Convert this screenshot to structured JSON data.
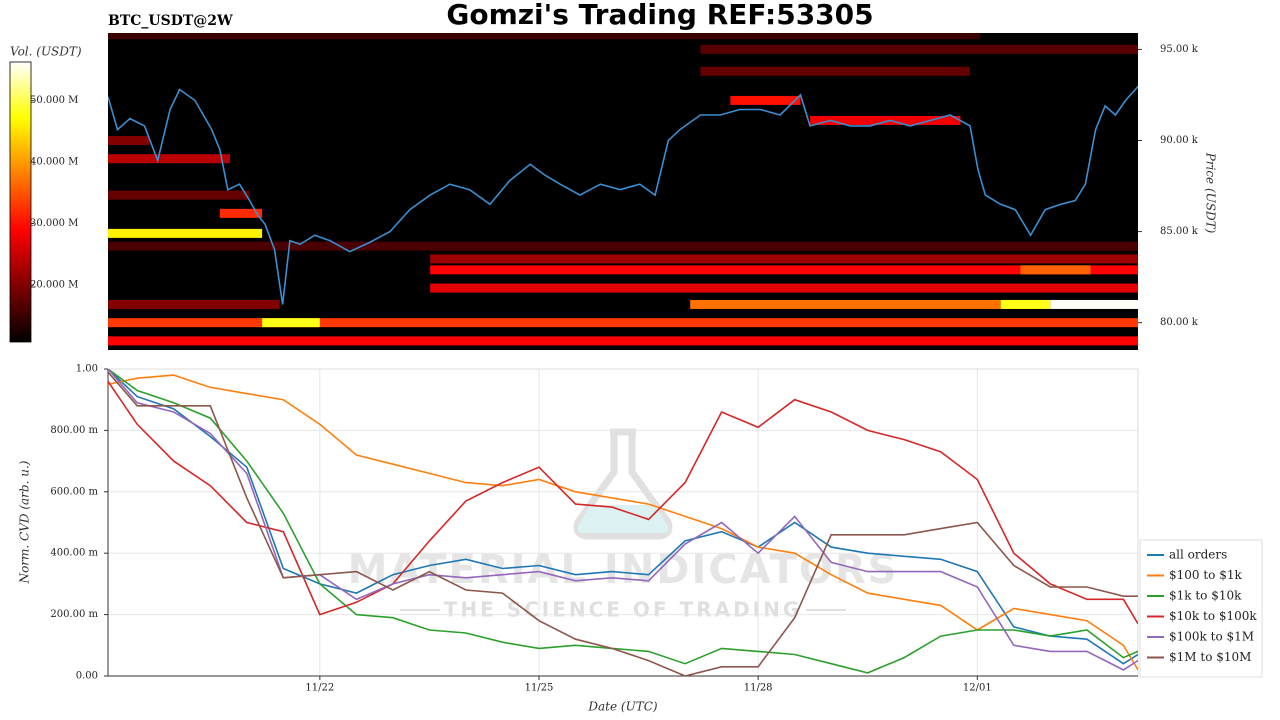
{
  "chart_data": [
    {
      "type": "heatmap",
      "title": "Gomzi's Trading REF:53305",
      "subtitle": "BTC_USDT@2W",
      "colorbar_label": "Vol. (USDT)",
      "clim": [
        10.7,
        56.3
      ],
      "cticks": [
        {
          "value": 20,
          "label": "20.000 M"
        },
        {
          "value": 30,
          "label": "30.000 M"
        },
        {
          "value": 40,
          "label": "40.000 M"
        },
        {
          "value": 50,
          "label": "50.000 M"
        }
      ],
      "ylabel": "Price (USDT)",
      "ylim": [
        78.5,
        95.9
      ],
      "yticks": [
        {
          "value": 80,
          "label": "80.00 k"
        },
        {
          "value": 85,
          "label": "85.00 k"
        },
        {
          "value": 90,
          "label": "90.00 k"
        },
        {
          "value": 95,
          "label": "95.00 k"
        }
      ],
      "xlim": [
        19.1,
        33.2
      ],
      "bands": [
        {
          "price": 95.8,
          "x": [
            19.1,
            31.04
          ],
          "volume": 15
        },
        {
          "price": 95.0,
          "x": [
            27.21,
            33.2
          ],
          "volume": 17
        },
        {
          "price": 93.8,
          "x": [
            27.21,
            30.9
          ],
          "volume": 18
        },
        {
          "price": 92.2,
          "x": [
            27.62,
            28.58
          ],
          "volume": 30
        },
        {
          "price": 91.1,
          "x": [
            28.71,
            30.77
          ],
          "volume": 28
        },
        {
          "price": 90.0,
          "x": [
            19.1,
            19.67
          ],
          "volume": 20
        },
        {
          "price": 89.0,
          "x": [
            19.1,
            20.77
          ],
          "volume": 24
        },
        {
          "price": 87.0,
          "x": [
            19.1,
            21.04
          ],
          "volume": 18
        },
        {
          "price": 86.0,
          "x": [
            20.63,
            21.21
          ],
          "volume": 32
        },
        {
          "price": 84.9,
          "x": [
            19.1,
            21.21
          ],
          "volume": 46
        },
        {
          "price": 84.2,
          "x": [
            19.1,
            33.2
          ],
          "volume": 16
        },
        {
          "price": 83.5,
          "x": [
            23.51,
            33.2
          ],
          "volume": 22
        },
        {
          "price": 82.9,
          "x": [
            23.51,
            33.2
          ],
          "volume": 29
        },
        {
          "price": 82.9,
          "x": [
            31.59,
            32.55
          ],
          "volume": 36
        },
        {
          "price": 81.9,
          "x": [
            23.51,
            33.2
          ],
          "volume": 27
        },
        {
          "price": 81.0,
          "x": [
            19.1,
            21.45
          ],
          "volume": 20
        },
        {
          "price": 81.0,
          "x": [
            27.07,
            31.32
          ],
          "volume": 37
        },
        {
          "price": 81.0,
          "x": [
            31.32,
            32.0
          ],
          "volume": 48
        },
        {
          "price": 81.0,
          "x": [
            32.0,
            33.2
          ],
          "volume": 56
        },
        {
          "price": 80.0,
          "x": [
            19.1,
            33.2
          ],
          "volume": 33
        },
        {
          "price": 80.0,
          "x": [
            21.21,
            22.0
          ],
          "volume": 48
        },
        {
          "price": 79.0,
          "x": [
            19.1,
            33.2
          ],
          "volume": 29
        }
      ],
      "x": [
        19.1,
        19.23,
        19.4,
        19.6,
        19.78,
        19.95,
        20.08,
        20.29,
        20.52,
        20.63,
        20.74,
        20.9,
        21.04,
        21.15,
        21.25,
        21.38,
        21.49,
        21.59,
        21.73,
        21.93,
        22.14,
        22.41,
        22.68,
        22.96,
        23.23,
        23.51,
        23.78,
        24.05,
        24.33,
        24.6,
        24.88,
        25.08,
        25.29,
        25.56,
        25.84,
        26.11,
        26.38,
        26.59,
        26.77,
        26.93,
        27.21,
        27.48,
        27.75,
        28.03,
        28.3,
        28.58,
        28.71,
        28.99,
        29.26,
        29.53,
        29.81,
        30.08,
        30.36,
        30.63,
        30.9,
        31.01,
        31.11,
        31.32,
        31.52,
        31.73,
        31.93,
        32.14,
        32.34,
        32.48,
        32.62,
        32.75,
        32.89,
        33.03,
        33.21
      ],
      "series": [
        {
          "color": "#3b8fd1",
          "values": [
            92.4,
            90.6,
            91.2,
            90.8,
            88.9,
            91.7,
            92.8,
            92.2,
            90.6,
            89.5,
            87.3,
            87.6,
            86.7,
            85.9,
            85.4,
            84.0,
            81.0,
            84.5,
            84.3,
            84.8,
            84.5,
            83.9,
            84.4,
            85.0,
            86.2,
            87.0,
            87.6,
            87.3,
            86.5,
            87.8,
            88.7,
            88.1,
            87.6,
            87.0,
            87.6,
            87.3,
            87.6,
            87.0,
            90.0,
            90.6,
            91.4,
            91.4,
            91.7,
            91.7,
            91.4,
            92.5,
            90.8,
            91.1,
            90.8,
            90.8,
            91.1,
            90.8,
            91.1,
            91.4,
            90.8,
            88.4,
            87.0,
            86.5,
            86.2,
            84.8,
            86.2,
            86.5,
            86.7,
            87.6,
            90.6,
            91.9,
            91.4,
            92.2,
            93.0
          ]
        }
      ]
    },
    {
      "type": "line",
      "xlabel": "Date (UTC)",
      "ylabel": "Norm. CVD (arb. u.)",
      "xlim": [
        19.1,
        33.2
      ],
      "ylim": [
        0,
        1
      ],
      "xticks": [
        {
          "value": 22,
          "label": "11/22"
        },
        {
          "value": 25,
          "label": "11/25"
        },
        {
          "value": 28,
          "label": "11/28"
        },
        {
          "value": 31,
          "label": "12/01"
        }
      ],
      "yticks": [
        {
          "value": 0,
          "label": "0.00"
        },
        {
          "value": 0.2,
          "label": "200.00 m"
        },
        {
          "value": 0.4,
          "label": "400.00 m"
        },
        {
          "value": 0.6,
          "label": "600.00 m"
        },
        {
          "value": 0.8,
          "label": "800.00 m"
        },
        {
          "value": 1,
          "label": "1.00"
        }
      ],
      "grid": true,
      "legend": "right",
      "watermark": [
        "MATERIAL INDICATORS",
        "THE SCIENCE OF TRADING"
      ],
      "x": [
        19.1,
        19.5,
        20.0,
        20.5,
        21.0,
        21.5,
        22.0,
        22.5,
        23.0,
        23.5,
        24.0,
        24.5,
        25.0,
        25.5,
        26.0,
        26.5,
        27.0,
        27.5,
        28.0,
        28.5,
        29.0,
        29.5,
        30.0,
        30.5,
        31.0,
        31.5,
        32.0,
        32.5,
        33.0,
        33.2
      ],
      "series": [
        {
          "name": "all orders",
          "color": "#1f77b4",
          "values": [
            1.0,
            0.91,
            0.87,
            0.78,
            0.68,
            0.35,
            0.3,
            0.27,
            0.33,
            0.36,
            0.38,
            0.35,
            0.36,
            0.33,
            0.34,
            0.33,
            0.44,
            0.47,
            0.42,
            0.5,
            0.42,
            0.4,
            0.39,
            0.38,
            0.34,
            0.16,
            0.13,
            0.12,
            0.04,
            0.07
          ]
        },
        {
          "name": "$100 to $1k",
          "color": "#ff7f0e",
          "values": [
            0.95,
            0.97,
            0.98,
            0.94,
            0.92,
            0.9,
            0.82,
            0.72,
            0.69,
            0.66,
            0.63,
            0.62,
            0.64,
            0.6,
            0.58,
            0.56,
            0.52,
            0.48,
            0.42,
            0.4,
            0.33,
            0.27,
            0.25,
            0.23,
            0.15,
            0.22,
            0.2,
            0.18,
            0.1,
            0.02
          ]
        },
        {
          "name": "$1k to $10k",
          "color": "#2ca02c",
          "values": [
            1.0,
            0.93,
            0.89,
            0.84,
            0.7,
            0.53,
            0.3,
            0.2,
            0.19,
            0.15,
            0.14,
            0.11,
            0.09,
            0.1,
            0.09,
            0.08,
            0.04,
            0.09,
            0.08,
            0.07,
            0.04,
            0.01,
            0.06,
            0.13,
            0.15,
            0.15,
            0.13,
            0.15,
            0.06,
            0.08
          ]
        },
        {
          "name": "$10k to $100k",
          "color": "#d62728",
          "values": [
            0.96,
            0.82,
            0.7,
            0.62,
            0.5,
            0.47,
            0.2,
            0.24,
            0.3,
            0.44,
            0.57,
            0.63,
            0.68,
            0.56,
            0.55,
            0.51,
            0.63,
            0.86,
            0.81,
            0.9,
            0.86,
            0.8,
            0.77,
            0.73,
            0.64,
            0.4,
            0.3,
            0.25,
            0.25,
            0.17
          ]
        },
        {
          "name": "$100k to $1M",
          "color": "#9467bd",
          "values": [
            1.0,
            0.89,
            0.86,
            0.79,
            0.66,
            0.32,
            0.33,
            0.25,
            0.3,
            0.33,
            0.32,
            0.33,
            0.34,
            0.31,
            0.32,
            0.31,
            0.43,
            0.5,
            0.4,
            0.52,
            0.37,
            0.34,
            0.34,
            0.34,
            0.29,
            0.1,
            0.08,
            0.08,
            0.02,
            0.05
          ]
        },
        {
          "name": "$1M to $10M",
          "color": "#8c564b",
          "values": [
            0.99,
            0.88,
            0.88,
            0.88,
            0.58,
            0.32,
            0.33,
            0.34,
            0.28,
            0.34,
            0.28,
            0.27,
            0.18,
            0.12,
            0.09,
            0.05,
            0.0,
            0.03,
            0.03,
            0.19,
            0.46,
            0.46,
            0.46,
            0.48,
            0.5,
            0.36,
            0.29,
            0.29,
            0.26,
            0.26
          ]
        }
      ]
    }
  ]
}
